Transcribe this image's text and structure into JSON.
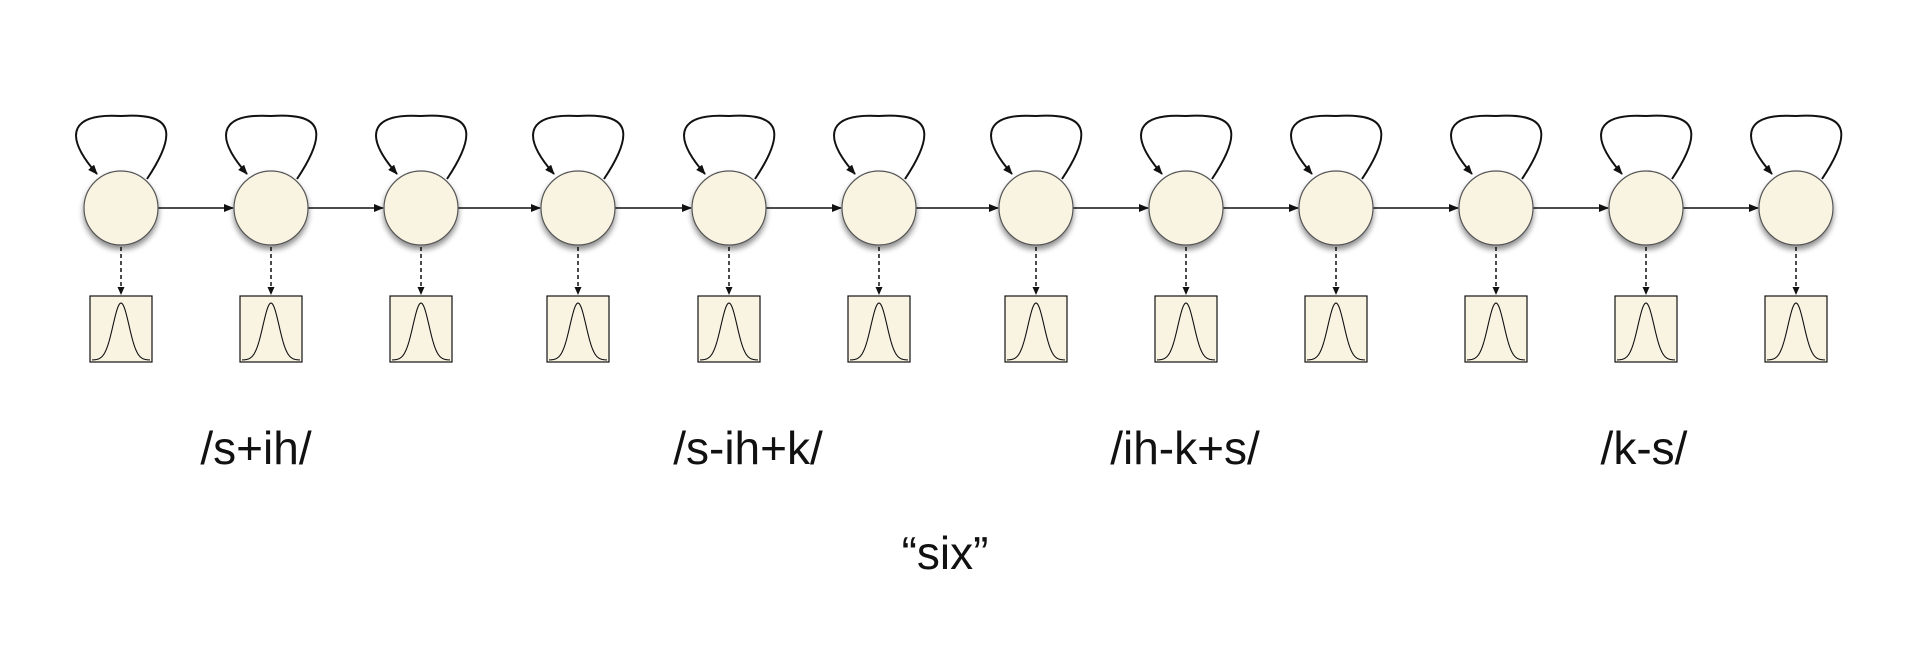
{
  "diagram": {
    "state_count": 12,
    "colors": {
      "state_fill": "#f9f4e2",
      "state_stroke": "#555555",
      "box_fill": "#f9f4e2",
      "line": "#111111"
    }
  },
  "labels": {
    "phones": [
      "/s+ih/",
      "/s-ih+k/",
      "/ih-k+s/",
      "/k-s/"
    ],
    "word": "“six”"
  }
}
